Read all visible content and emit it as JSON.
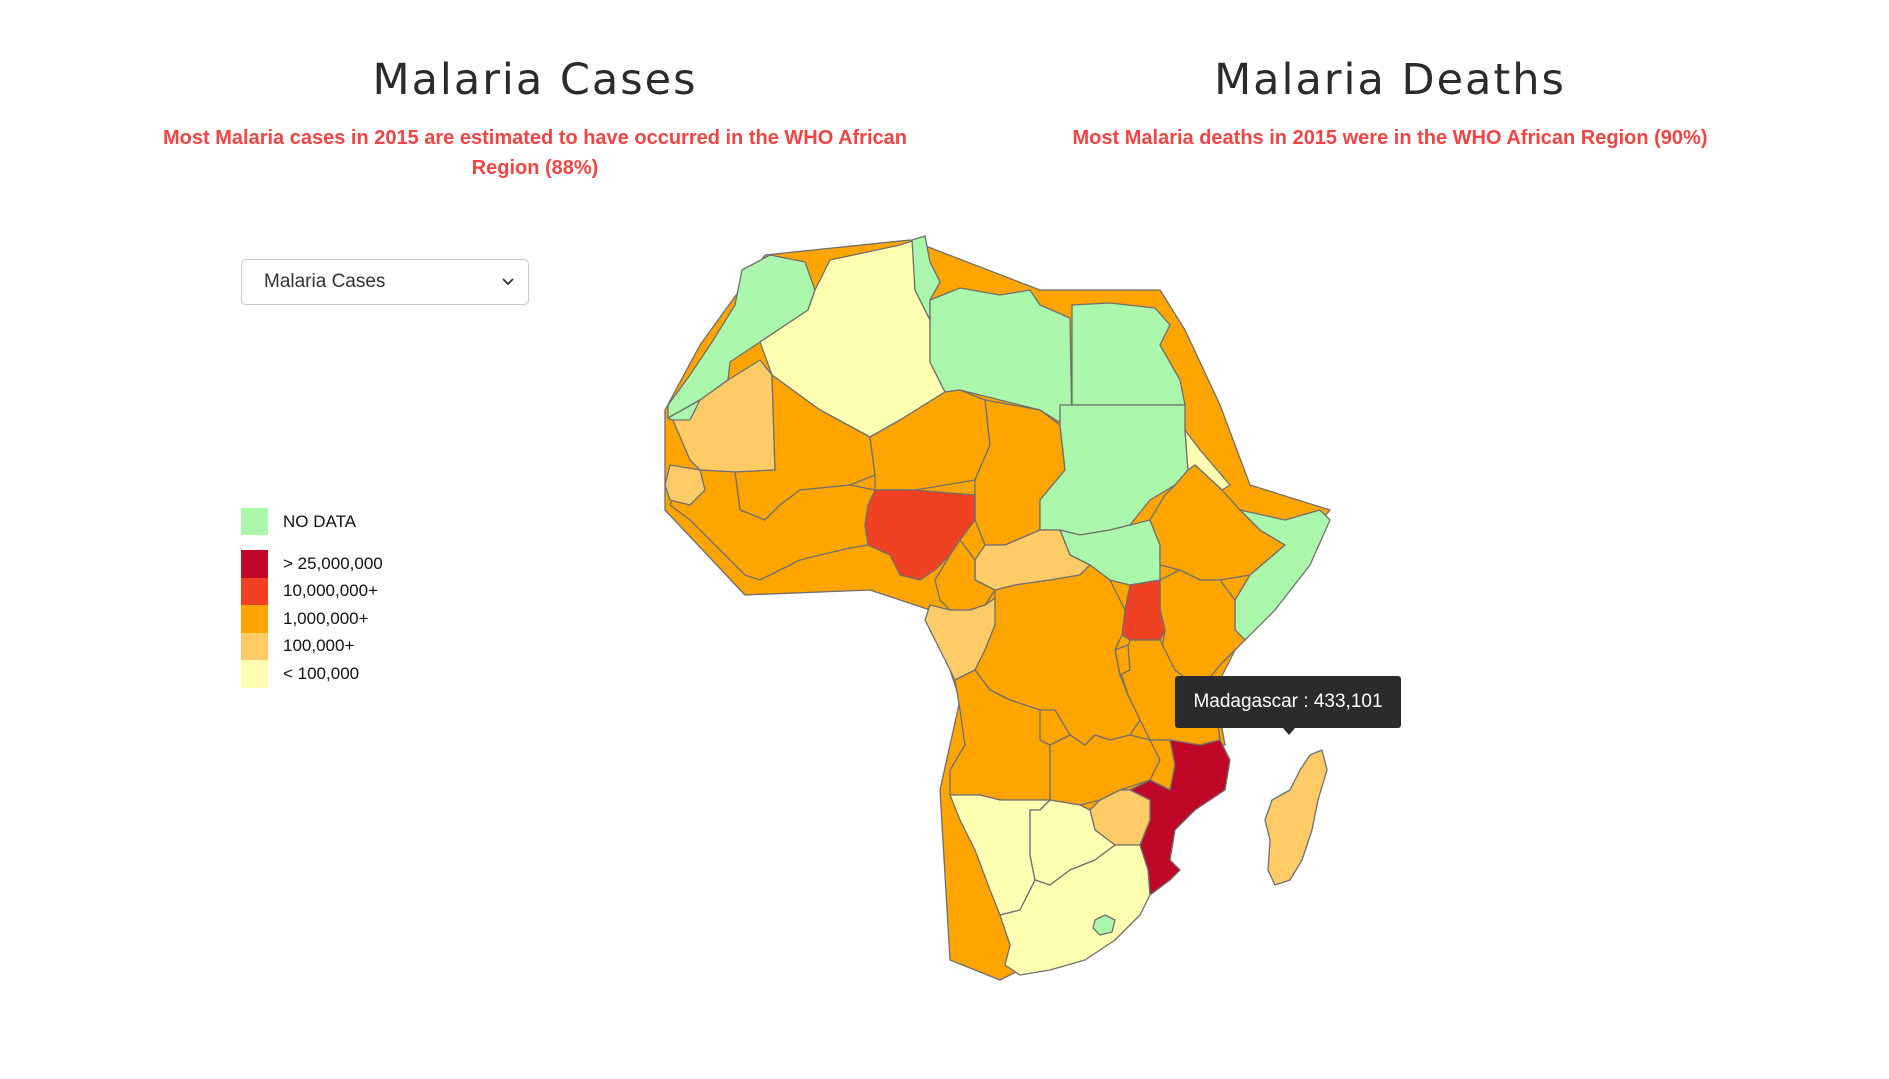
{
  "cases_panel": {
    "title": "Malaria Cases",
    "subtitle": "Most Malaria cases in 2015 are estimated to have occurred in the WHO African Region (88%)"
  },
  "deaths_panel": {
    "title": "Malaria Deaths",
    "subtitle": "Most Malaria deaths in 2015 were in the WHO African Region (90%)"
  },
  "dataset_select": {
    "selected": "Malaria Cases"
  },
  "colors": {
    "no_data": "#abf7ab",
    "over_25m": "#c00727",
    "over_10m": "#f04123",
    "over_1m": "#ffa500",
    "over_100k": "#ffcb66",
    "under_100k": "#ffffb2",
    "subtitle": "#f04545",
    "tooltip_bg": "#2b2b2b"
  },
  "legend": {
    "no_data": "NO DATA",
    "items": [
      {
        "label": "> 25,000,000",
        "color": "#c00727"
      },
      {
        "label": "10,000,000+",
        "color": "#f04123"
      },
      {
        "label": "1,000,000+",
        "color": "#ffa500"
      },
      {
        "label": "100,000+",
        "color": "#ffcb66"
      },
      {
        "label": "< 100,000",
        "color": "#ffffb2"
      }
    ]
  },
  "tooltip": {
    "text": "Madagascar : 433,101"
  }
}
